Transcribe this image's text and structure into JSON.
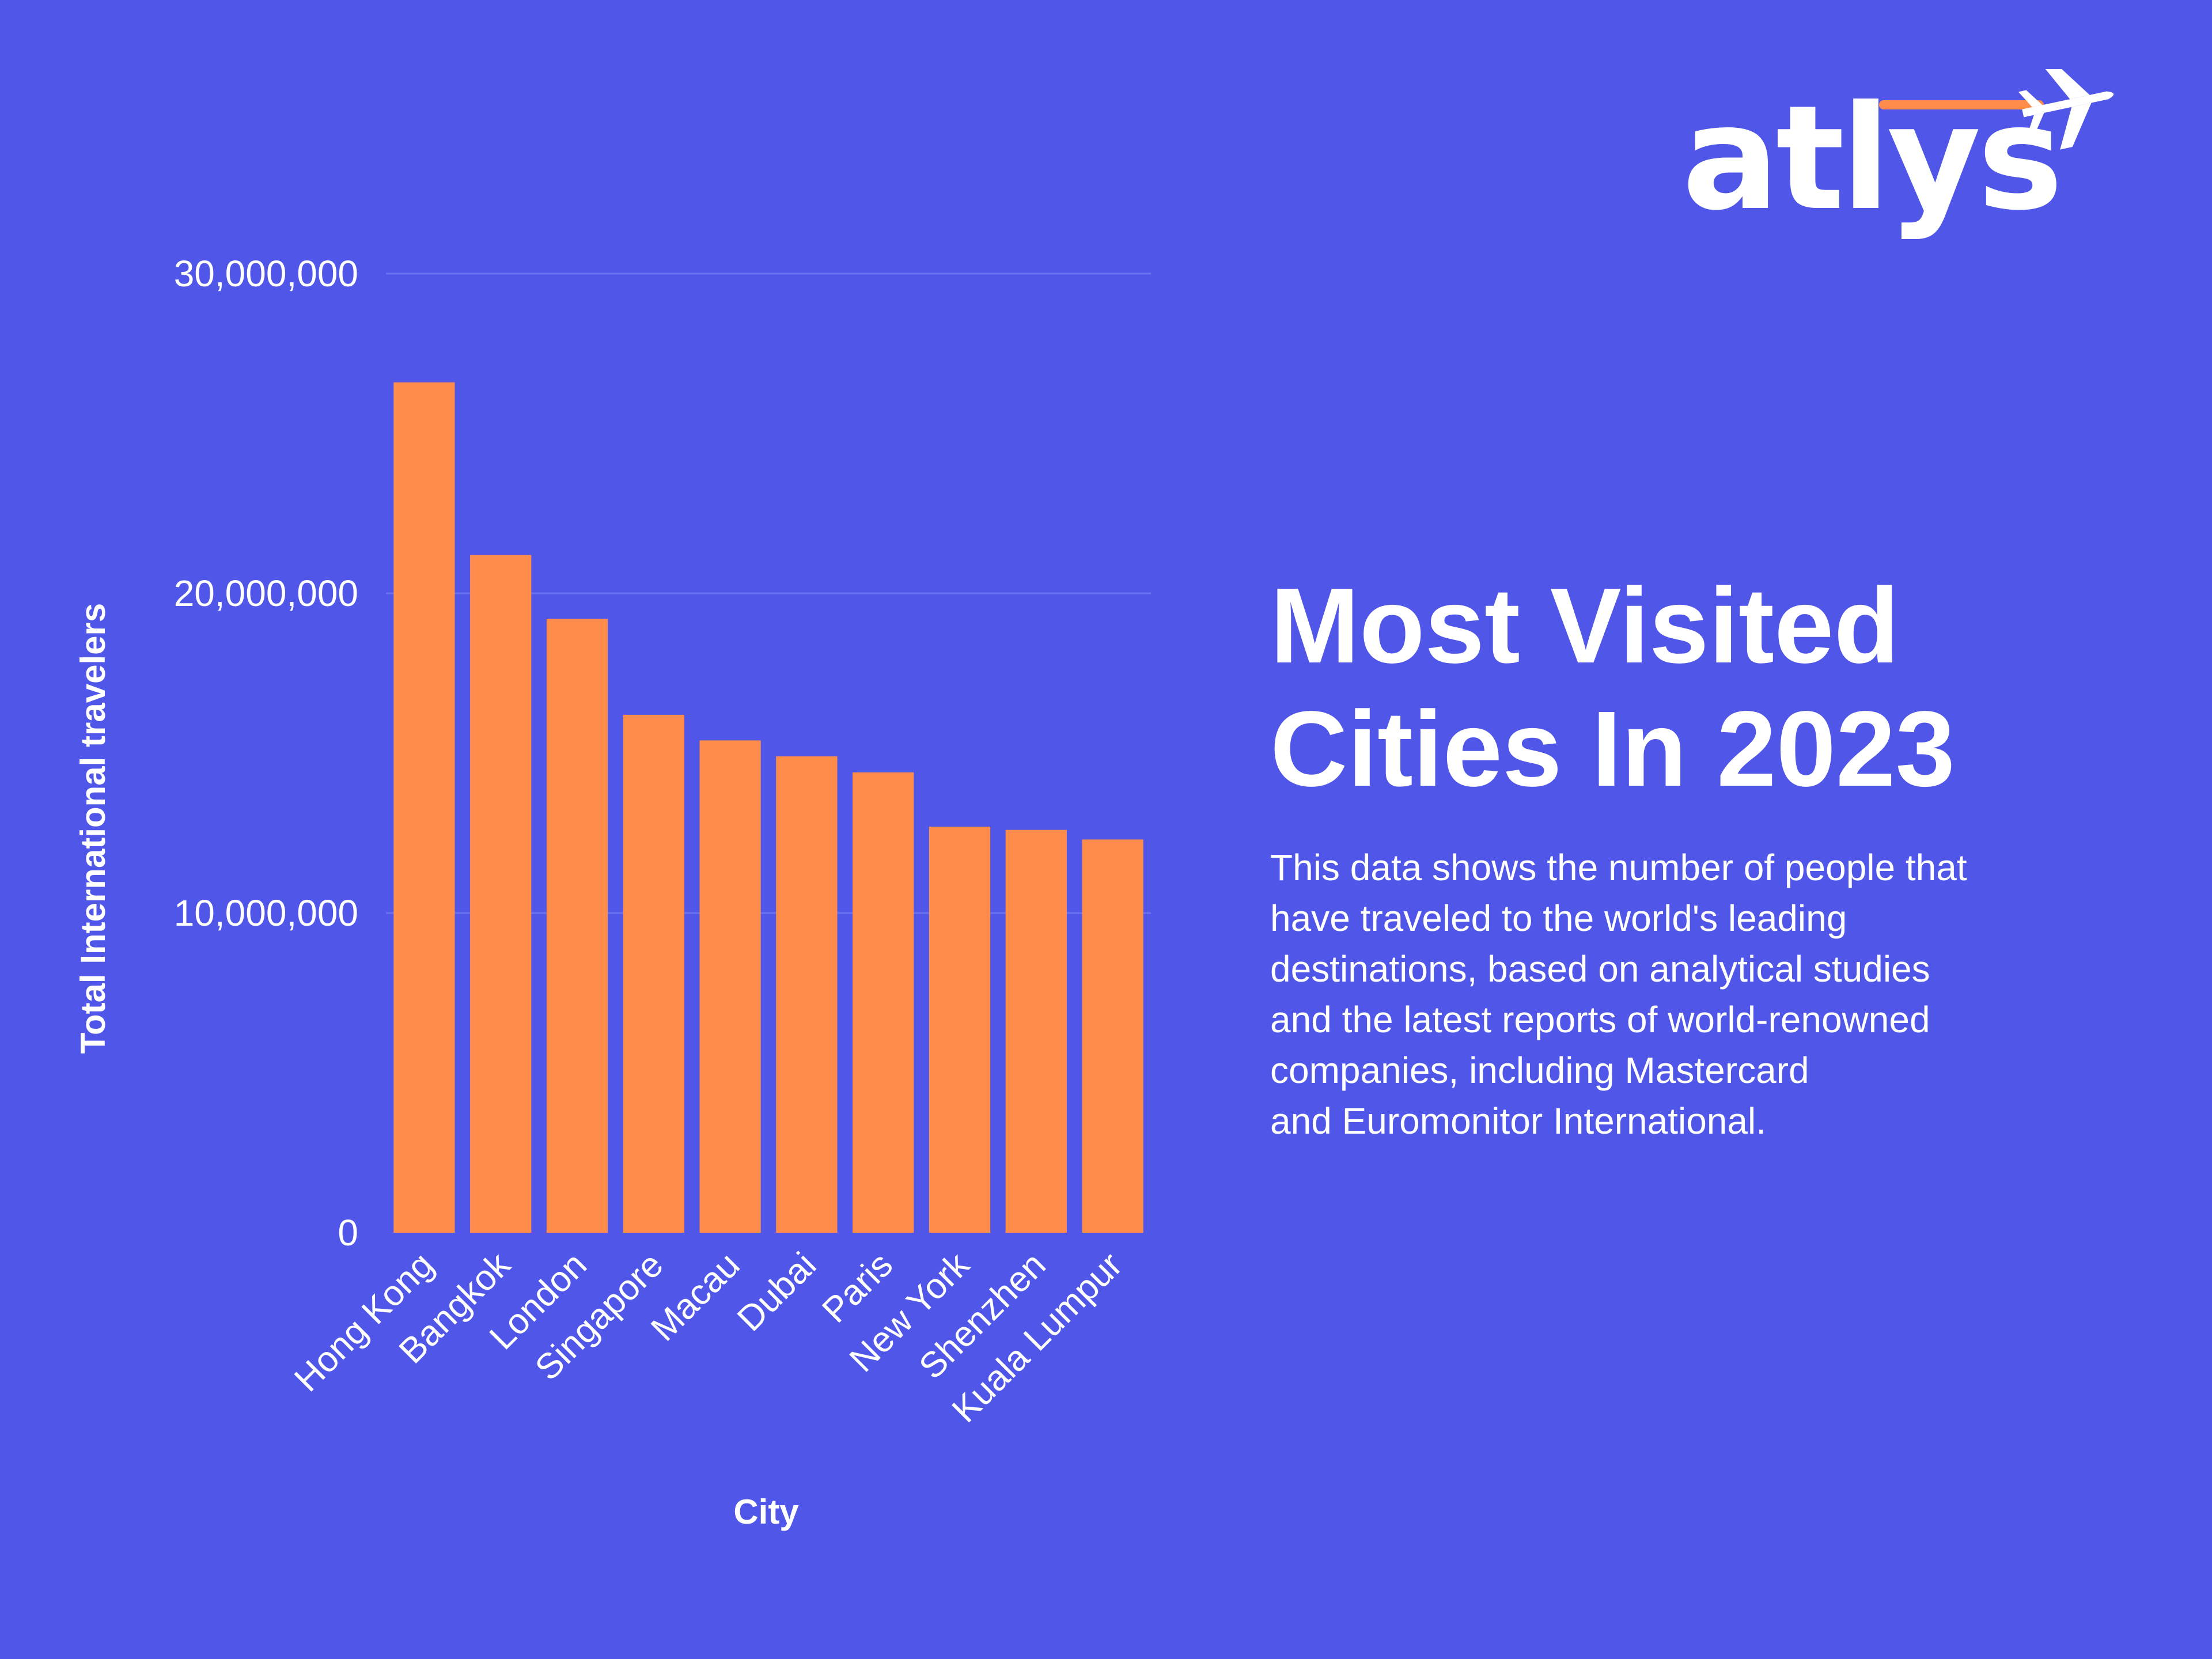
{
  "brand": {
    "name": "atlys",
    "accent_color": "#FF8C4B",
    "icon": "airplane-icon"
  },
  "headline": {
    "line1": "Most Visited",
    "line2": "Cities In 2023"
  },
  "description": {
    "lines": [
      "This data shows the number of people that",
      "have traveled to the world's leading",
      "destinations, based on analytical studies",
      "and the latest reports of world-renowned",
      "companies, including Mastercard",
      "and Euromonitor International."
    ]
  },
  "colors": {
    "background": "#5057E8",
    "bar": "#FF8C4B",
    "text": "#FFFFFF",
    "grid": "#6B72F0"
  },
  "chart_data": {
    "type": "bar",
    "categories": [
      "Hong Kong",
      "Bangkok",
      "London",
      "Singapore",
      "Macau",
      "Dubai",
      "Paris",
      "New York",
      "Shenzhen",
      "Kuala Lumpur"
    ],
    "values": [
      26600000,
      21200000,
      19200000,
      16200000,
      15400000,
      14900000,
      14400000,
      12700000,
      12600000,
      12300000
    ],
    "xlabel": "City",
    "ylabel": "Total International travelers",
    "ylim": [
      0,
      30000000
    ],
    "yticks": [
      0,
      10000000,
      20000000,
      30000000
    ],
    "ytick_labels": [
      "0",
      "10,000,000",
      "20,000,000",
      "30,000,000"
    ],
    "grid": true,
    "legend": "none"
  }
}
